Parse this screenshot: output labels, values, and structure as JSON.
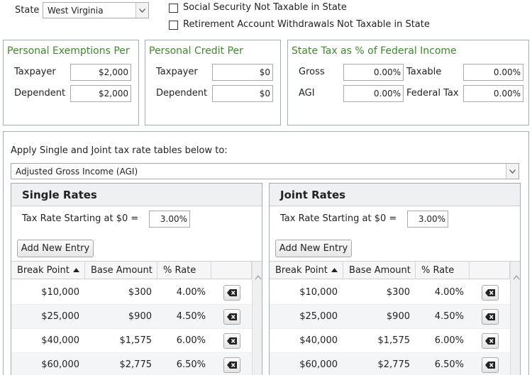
{
  "state": {
    "label": "State",
    "selected": "West Virginia",
    "options": {
      "social_security": "Social Security Not Taxable in State",
      "retirement": "Retirement Account Withdrawals Not Taxable in State"
    }
  },
  "exemptions": {
    "title": "Personal Exemptions Per",
    "taxpayer_label": "Taxpayer",
    "taxpayer_value": "$2,000",
    "dependent_label": "Dependent",
    "dependent_value": "$2,000"
  },
  "credit": {
    "title": "Personal Credit Per",
    "taxpayer_label": "Taxpayer",
    "taxpayer_value": "$0",
    "dependent_label": "Dependent",
    "dependent_value": "$0"
  },
  "state_tax": {
    "title": "State Tax as % of Federal Income",
    "gross_label": "Gross",
    "gross_value": "0.00%",
    "agi_label": "AGI",
    "agi_value": "0.00%",
    "taxable_label": "Taxable",
    "taxable_value": "0.00%",
    "federal_label": "Federal Tax",
    "federal_value": "0.00%"
  },
  "apply": {
    "label": "Apply Single and Joint tax rate tables below to:",
    "selected": "Adjusted Gross Income (AGI)"
  },
  "single": {
    "title": "Single Rates",
    "start_label": "Tax Rate Starting at $0 =",
    "start_value": "3.00%",
    "add_label": "Add New Entry",
    "columns": [
      "Break Point",
      "Base Amount",
      "% Rate"
    ],
    "rows": [
      {
        "break": "$10,000",
        "base": "$300",
        "rate": "4.00%"
      },
      {
        "break": "$25,000",
        "base": "$900",
        "rate": "4.50%"
      },
      {
        "break": "$40,000",
        "base": "$1,575",
        "rate": "6.00%"
      },
      {
        "break": "$60,000",
        "base": "$2,775",
        "rate": "6.50%"
      }
    ]
  },
  "joint": {
    "title": "Joint Rates",
    "start_label": "Tax Rate Starting at $0 =",
    "start_value": "3.00%",
    "add_label": "Add New Entry",
    "columns": [
      "Break Point",
      "Base Amount",
      "% Rate"
    ],
    "rows": [
      {
        "break": "$10,000",
        "base": "$300",
        "rate": "4.00%"
      },
      {
        "break": "$25,000",
        "base": "$900",
        "rate": "4.50%"
      },
      {
        "break": "$40,000",
        "base": "$1,575",
        "rate": "6.00%"
      },
      {
        "break": "$60,000",
        "base": "$2,775",
        "rate": "6.50%"
      }
    ]
  }
}
